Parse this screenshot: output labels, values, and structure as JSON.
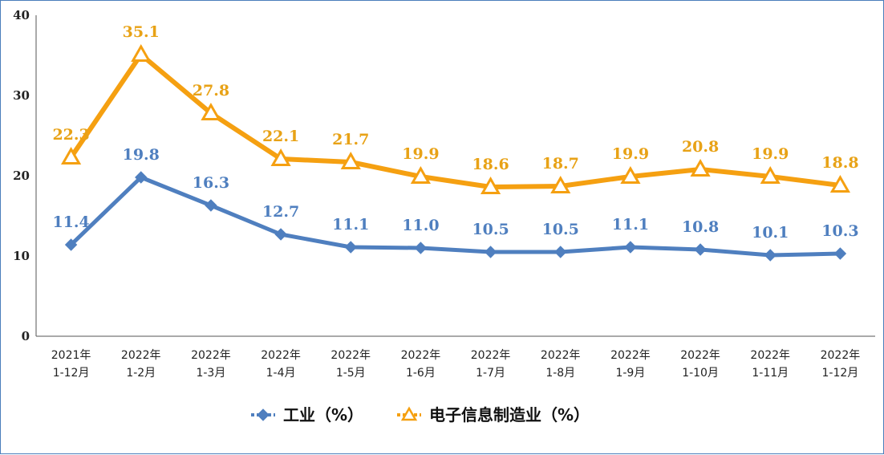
{
  "chart_data": {
    "type": "line",
    "title": "",
    "xlabel": "",
    "ylabel": "",
    "ylim": [
      0,
      40
    ],
    "yticks": [
      0,
      10,
      20,
      30,
      40
    ],
    "grid": false,
    "legend_position": "bottom-center",
    "categories": [
      [
        "2021年",
        "1-12月"
      ],
      [
        "2022年",
        "1-2月"
      ],
      [
        "2022年",
        "1-3月"
      ],
      [
        "2022年",
        "1-4月"
      ],
      [
        "2022年",
        "1-5月"
      ],
      [
        "2022年",
        "1-6月"
      ],
      [
        "2022年",
        "1-7月"
      ],
      [
        "2022年",
        "1-8月"
      ],
      [
        "2022年",
        "1-9月"
      ],
      [
        "2022年",
        "1-10月"
      ],
      [
        "2022年",
        "1-11月"
      ],
      [
        "2022年",
        "1-12月"
      ]
    ],
    "series": [
      {
        "name": "工业（%）",
        "color": "#4f7fbf",
        "marker": "diamond",
        "values": [
          11.4,
          19.8,
          16.3,
          12.7,
          11.1,
          11.0,
          10.5,
          10.5,
          11.1,
          10.8,
          10.1,
          10.3
        ],
        "labels": [
          "11.4",
          "19.8",
          "16.3",
          "12.7",
          "11.1",
          "11.0",
          "10.5",
          "10.5",
          "11.1",
          "10.8",
          "10.1",
          "10.3"
        ]
      },
      {
        "name": "电子信息制造业（%）",
        "color": "#f5a011",
        "marker": "triangle",
        "values": [
          22.3,
          35.1,
          27.8,
          22.1,
          21.7,
          19.9,
          18.6,
          18.7,
          19.9,
          20.8,
          19.9,
          18.8
        ],
        "labels": [
          "22.3",
          "35.1",
          "27.8",
          "22.1",
          "21.7",
          "19.9",
          "18.6",
          "18.7",
          "19.9",
          "20.8",
          "19.9",
          "18.8"
        ]
      }
    ],
    "label_colors": {
      "industry": "#4f7fbf",
      "electronics": "#e8a216"
    }
  }
}
